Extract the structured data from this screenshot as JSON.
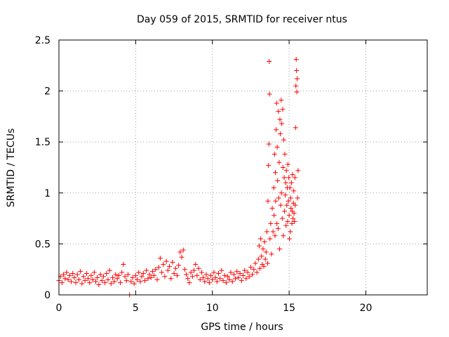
{
  "chart_data": {
    "type": "scatter",
    "title": "Day 059 of 2015, SRMTID for receiver ntus",
    "xlabel": "GPS time / hours",
    "ylabel": "SRMTID / TECUs",
    "xlim": [
      0,
      24
    ],
    "ylim": [
      0,
      2.5
    ],
    "x_ticks": [
      0,
      5,
      10,
      15,
      20
    ],
    "y_ticks": [
      0,
      0.5,
      1,
      1.5,
      2,
      2.5
    ],
    "x_tick_labels": [
      "0",
      "5",
      "10",
      "15",
      "20"
    ],
    "y_tick_labels": [
      "0",
      "0.5",
      "1",
      "1.5",
      "2",
      "2.5"
    ],
    "grid": true,
    "marker": "+",
    "color": "#ff0000",
    "series": [
      {
        "name": "SRMTID",
        "points": [
          [
            0.0,
            0.14
          ],
          [
            0.1,
            0.18
          ],
          [
            0.2,
            0.12
          ],
          [
            0.3,
            0.2
          ],
          [
            0.4,
            0.16
          ],
          [
            0.5,
            0.22
          ],
          [
            0.6,
            0.15
          ],
          [
            0.7,
            0.19
          ],
          [
            0.8,
            0.13
          ],
          [
            0.9,
            0.21
          ],
          [
            1.0,
            0.17
          ],
          [
            1.1,
            0.12
          ],
          [
            1.2,
            0.2
          ],
          [
            1.3,
            0.15
          ],
          [
            1.4,
            0.23
          ],
          [
            1.5,
            0.11
          ],
          [
            1.6,
            0.18
          ],
          [
            1.7,
            0.14
          ],
          [
            1.8,
            0.21
          ],
          [
            1.9,
            0.16
          ],
          [
            2.0,
            0.12
          ],
          [
            2.1,
            0.19
          ],
          [
            2.2,
            0.15
          ],
          [
            2.3,
            0.22
          ],
          [
            2.4,
            0.13
          ],
          [
            2.5,
            0.17
          ],
          [
            2.6,
            0.1
          ],
          [
            2.7,
            0.2
          ],
          [
            2.8,
            0.14
          ],
          [
            2.9,
            0.18
          ],
          [
            3.0,
            0.12
          ],
          [
            3.1,
            0.21
          ],
          [
            3.2,
            0.15
          ],
          [
            3.3,
            0.24
          ],
          [
            3.4,
            0.11
          ],
          [
            3.5,
            0.17
          ],
          [
            3.6,
            0.13
          ],
          [
            3.7,
            0.2
          ],
          [
            3.8,
            0.16
          ],
          [
            3.9,
            0.19
          ],
          [
            4.0,
            0.12
          ],
          [
            4.1,
            0.22
          ],
          [
            4.2,
            0.3
          ],
          [
            4.3,
            0.18
          ],
          [
            4.4,
            0.14
          ],
          [
            4.5,
            0.2
          ],
          [
            4.6,
            0.0
          ],
          [
            4.7,
            0.13
          ],
          [
            4.8,
            0.17
          ],
          [
            4.9,
            0.11
          ],
          [
            5.0,
            0.19
          ],
          [
            5.1,
            0.15
          ],
          [
            5.2,
            0.22
          ],
          [
            5.3,
            0.13
          ],
          [
            5.4,
            0.18
          ],
          [
            5.5,
            0.21
          ],
          [
            5.6,
            0.14
          ],
          [
            5.7,
            0.24
          ],
          [
            5.8,
            0.16
          ],
          [
            5.9,
            0.2
          ],
          [
            6.0,
            0.17
          ],
          [
            6.1,
            0.23
          ],
          [
            6.2,
            0.19
          ],
          [
            6.3,
            0.25
          ],
          [
            6.4,
            0.15
          ],
          [
            6.5,
            0.27
          ],
          [
            6.6,
            0.36
          ],
          [
            6.7,
            0.22
          ],
          [
            6.8,
            0.3
          ],
          [
            6.9,
            0.18
          ],
          [
            7.0,
            0.33
          ],
          [
            7.1,
            0.24
          ],
          [
            7.2,
            0.28
          ],
          [
            7.3,
            0.16
          ],
          [
            7.4,
            0.32
          ],
          [
            7.5,
            0.21
          ],
          [
            7.6,
            0.26
          ],
          [
            7.7,
            0.19
          ],
          [
            7.8,
            0.29
          ],
          [
            7.9,
            0.42
          ],
          [
            8.0,
            0.37
          ],
          [
            8.1,
            0.44
          ],
          [
            8.2,
            0.25
          ],
          [
            8.3,
            0.2
          ],
          [
            8.4,
            0.16
          ],
          [
            8.5,
            0.12
          ],
          [
            8.6,
            0.22
          ],
          [
            8.7,
            0.18
          ],
          [
            8.8,
            0.24
          ],
          [
            8.9,
            0.3
          ],
          [
            9.0,
            0.19
          ],
          [
            9.1,
            0.26
          ],
          [
            9.2,
            0.15
          ],
          [
            9.3,
            0.22
          ],
          [
            9.4,
            0.17
          ],
          [
            9.5,
            0.13
          ],
          [
            9.6,
            0.2
          ],
          [
            9.7,
            0.16
          ],
          [
            9.8,
            0.12
          ],
          [
            9.9,
            0.19
          ],
          [
            10.0,
            0.15
          ],
          [
            10.1,
            0.22
          ],
          [
            10.2,
            0.17
          ],
          [
            10.3,
            0.13
          ],
          [
            10.4,
            0.21
          ],
          [
            10.5,
            0.16
          ],
          [
            10.6,
            0.24
          ],
          [
            10.7,
            0.14
          ],
          [
            10.8,
            0.19
          ],
          [
            10.9,
            0.12
          ],
          [
            11.0,
            0.18
          ],
          [
            11.1,
            0.15
          ],
          [
            11.2,
            0.22
          ],
          [
            11.3,
            0.13
          ],
          [
            11.4,
            0.2
          ],
          [
            11.5,
            0.16
          ],
          [
            11.6,
            0.23
          ],
          [
            11.7,
            0.17
          ],
          [
            11.8,
            0.21
          ],
          [
            11.9,
            0.14
          ],
          [
            12.0,
            0.19
          ],
          [
            12.1,
            0.24
          ],
          [
            12.2,
            0.16
          ],
          [
            12.3,
            0.22
          ],
          [
            12.4,
            0.18
          ],
          [
            12.5,
            0.27
          ],
          [
            12.6,
            0.2
          ],
          [
            12.7,
            0.25
          ],
          [
            12.8,
            0.31
          ],
          [
            12.9,
            0.22
          ],
          [
            13.0,
            0.35
          ],
          [
            13.05,
            0.48
          ],
          [
            13.1,
            0.26
          ],
          [
            13.15,
            0.55
          ],
          [
            13.2,
            0.38
          ],
          [
            13.25,
            0.3
          ],
          [
            13.3,
            0.45
          ],
          [
            13.35,
            0.28
          ],
          [
            13.4,
            0.52
          ],
          [
            13.45,
            0.35
          ],
          [
            13.5,
            0.42
          ],
          [
            13.55,
            0.62
          ],
          [
            13.6,
            0.31
          ],
          [
            13.62,
            0.92
          ],
          [
            13.65,
            1.27
          ],
          [
            13.68,
            1.48
          ],
          [
            13.7,
            2.29
          ],
          [
            13.72,
            1.97
          ],
          [
            13.75,
            0.55
          ],
          [
            13.8,
            0.7
          ],
          [
            13.85,
            0.4
          ],
          [
            13.9,
            0.85
          ],
          [
            13.95,
            0.62
          ],
          [
            14.0,
            1.05
          ],
          [
            14.02,
            0.78
          ],
          [
            14.05,
            1.38
          ],
          [
            14.08,
            0.58
          ],
          [
            14.1,
            1.2
          ],
          [
            14.12,
            0.92
          ],
          [
            14.15,
            1.62
          ],
          [
            14.18,
            1.88
          ],
          [
            14.2,
            0.7
          ],
          [
            14.22,
            1.45
          ],
          [
            14.25,
            1.12
          ],
          [
            14.28,
            0.65
          ],
          [
            14.3,
            1.8
          ],
          [
            14.32,
            0.95
          ],
          [
            14.35,
            1.3
          ],
          [
            14.38,
            0.45
          ],
          [
            14.4,
            1.72
          ],
          [
            14.42,
            1.58
          ],
          [
            14.45,
            0.88
          ],
          [
            14.48,
            1.91
          ],
          [
            14.5,
            1.0
          ],
          [
            14.52,
            1.68
          ],
          [
            14.55,
            0.75
          ],
          [
            14.58,
            1.82
          ],
          [
            14.6,
            1.25
          ],
          [
            14.62,
            0.58
          ],
          [
            14.65,
            1.52
          ],
          [
            14.68,
            1.15
          ],
          [
            14.7,
            0.82
          ],
          [
            14.72,
            1.38
          ],
          [
            14.75,
            0.98
          ],
          [
            14.78,
            1.1
          ],
          [
            14.8,
            0.68
          ],
          [
            14.82,
            1.22
          ],
          [
            14.85,
            0.88
          ],
          [
            14.88,
            1.05
          ],
          [
            14.9,
            0.72
          ],
          [
            14.92,
            1.28
          ],
          [
            14.95,
            0.92
          ],
          [
            14.98,
            1.15
          ],
          [
            15.0,
            0.78
          ],
          [
            15.02,
            0.55
          ],
          [
            15.05,
            1.05
          ],
          [
            15.08,
            0.62
          ],
          [
            15.1,
            0.95
          ],
          [
            15.12,
            0.85
          ],
          [
            15.15,
            1.1
          ],
          [
            15.18,
            0.7
          ],
          [
            15.2,
            0.82
          ],
          [
            15.22,
            1.18
          ],
          [
            15.25,
            0.75
          ],
          [
            15.28,
            0.9
          ],
          [
            15.3,
            1.02
          ],
          [
            15.32,
            0.8
          ],
          [
            15.35,
            0.72
          ],
          [
            15.38,
            1.15
          ],
          [
            15.4,
            0.88
          ],
          [
            15.42,
            1.64
          ],
          [
            15.44,
            2.05
          ],
          [
            15.46,
            2.31
          ],
          [
            15.48,
            2.2
          ],
          [
            15.5,
            1.99
          ],
          [
            15.52,
            2.12
          ],
          [
            15.55,
            0.95
          ],
          [
            15.58,
            1.22
          ]
        ]
      }
    ]
  }
}
